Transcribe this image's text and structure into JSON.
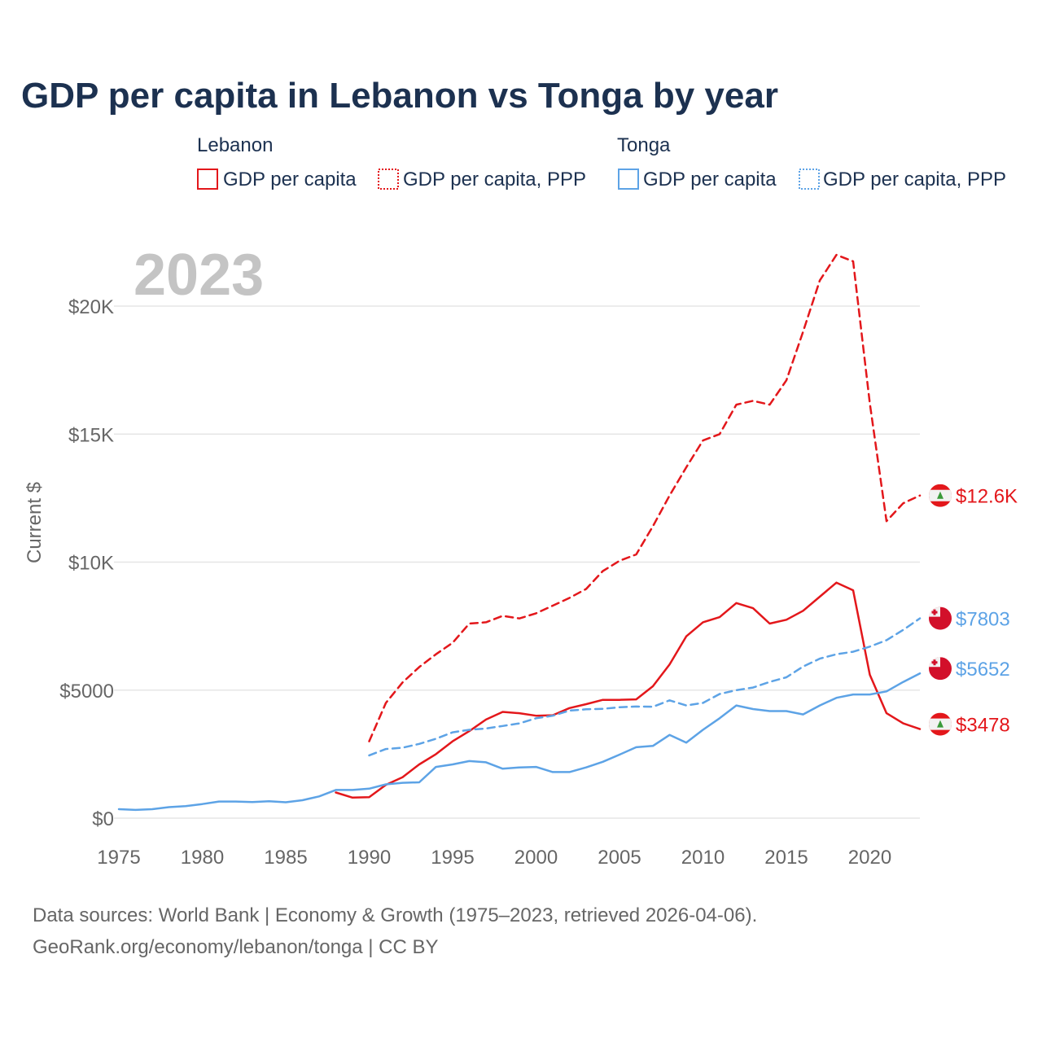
{
  "chart_data": {
    "type": "line",
    "title": "GDP per capita in Lebanon vs Tonga by year",
    "ylabel": "Current $",
    "xlabel": "",
    "xlim": [
      1975,
      2023
    ],
    "ylim": [
      0,
      22000
    ],
    "x_ticks": [
      1975,
      1980,
      1985,
      1990,
      1995,
      2000,
      2005,
      2010,
      2015,
      2020
    ],
    "x_tick_labels": [
      "1975",
      "1980",
      "1985",
      "1990",
      "1995",
      "2000",
      "2005",
      "2010",
      "2015",
      "2020"
    ],
    "y_ticks": [
      0,
      5000,
      10000,
      15000,
      20000
    ],
    "y_tick_labels": [
      "$0",
      "$5000",
      "$10K",
      "$15K",
      "$20K"
    ],
    "current_year": "2023",
    "legend": {
      "groups": [
        {
          "name": "Lebanon",
          "entries": [
            "GDP per capita",
            "GDP per capita, PPP"
          ]
        },
        {
          "name": "Tonga",
          "entries": [
            "GDP per capita",
            "GDP per capita, PPP"
          ]
        }
      ]
    },
    "series": [
      {
        "name": "Lebanon GDP per capita, PPP",
        "country": "Lebanon",
        "style": "dashed",
        "color": "#e3171b",
        "end_label": "$12.6K",
        "x": [
          1990,
          1991,
          1992,
          1993,
          1994,
          1995,
          1996,
          1997,
          1998,
          1999,
          2000,
          2001,
          2002,
          2003,
          2004,
          2005,
          2006,
          2007,
          2008,
          2009,
          2010,
          2011,
          2012,
          2013,
          2014,
          2015,
          2016,
          2017,
          2018,
          2019,
          2020,
          2021,
          2022,
          2023
        ],
        "values": [
          3000,
          4500,
          5300,
          5900,
          6400,
          6850,
          7600,
          7650,
          7900,
          7800,
          8000,
          8300,
          8600,
          8950,
          9650,
          10050,
          10300,
          11400,
          12600,
          13700,
          14750,
          15000,
          16150,
          16300,
          16150,
          17100,
          19000,
          21000,
          22000,
          21750,
          16200,
          11600,
          12300,
          12600
        ]
      },
      {
        "name": "Lebanon GDP per capita",
        "country": "Lebanon",
        "style": "solid",
        "color": "#e3171b",
        "end_label": "$3478",
        "x": [
          1988,
          1989,
          1990,
          1991,
          1992,
          1993,
          1994,
          1995,
          1996,
          1997,
          1998,
          1999,
          2000,
          2001,
          2002,
          2003,
          2004,
          2005,
          2006,
          2007,
          2008,
          2009,
          2010,
          2011,
          2012,
          2013,
          2014,
          2015,
          2016,
          2017,
          2018,
          2019,
          2020,
          2021,
          2022,
          2023
        ],
        "values": [
          1000,
          800,
          820,
          1300,
          1600,
          2100,
          2500,
          3000,
          3400,
          3850,
          4150,
          4100,
          4000,
          4020,
          4300,
          4450,
          4620,
          4620,
          4640,
          5150,
          6000,
          7100,
          7650,
          7850,
          8400,
          8200,
          7600,
          7750,
          8100,
          8650,
          9200,
          8900,
          5600,
          4100,
          3700,
          3478
        ]
      },
      {
        "name": "Tonga GDP per capita, PPP",
        "country": "Tonga",
        "style": "dashed",
        "color": "#5da3e6",
        "end_label": "$7803",
        "x": [
          1990,
          1991,
          1992,
          1993,
          1994,
          1995,
          1996,
          1997,
          1998,
          1999,
          2000,
          2001,
          2002,
          2003,
          2004,
          2005,
          2006,
          2007,
          2008,
          2009,
          2010,
          2011,
          2012,
          2013,
          2014,
          2015,
          2016,
          2017,
          2018,
          2019,
          2020,
          2021,
          2022,
          2023
        ],
        "values": [
          2450,
          2700,
          2750,
          2900,
          3100,
          3350,
          3450,
          3500,
          3600,
          3700,
          3900,
          4000,
          4200,
          4250,
          4270,
          4330,
          4360,
          4350,
          4600,
          4400,
          4500,
          4850,
          5000,
          5100,
          5320,
          5500,
          5920,
          6230,
          6400,
          6500,
          6700,
          6950,
          7350,
          7803
        ]
      },
      {
        "name": "Tonga GDP per capita",
        "country": "Tonga",
        "style": "solid",
        "color": "#5da3e6",
        "end_label": "$5652",
        "x": [
          1975,
          1976,
          1977,
          1978,
          1979,
          1980,
          1981,
          1982,
          1983,
          1984,
          1985,
          1986,
          1987,
          1988,
          1989,
          1990,
          1991,
          1992,
          1993,
          1994,
          1995,
          1996,
          1997,
          1998,
          1999,
          2000,
          2001,
          2002,
          2003,
          2004,
          2005,
          2006,
          2007,
          2008,
          2009,
          2010,
          2011,
          2012,
          2013,
          2014,
          2015,
          2016,
          2017,
          2018,
          2019,
          2020,
          2021,
          2022,
          2023
        ],
        "values": [
          350,
          320,
          350,
          430,
          470,
          550,
          650,
          650,
          630,
          660,
          620,
          700,
          850,
          1100,
          1100,
          1150,
          1320,
          1380,
          1400,
          2000,
          2100,
          2230,
          2180,
          1930,
          1980,
          2000,
          1800,
          1800,
          1980,
          2200,
          2480,
          2770,
          2820,
          3250,
          2950,
          3450,
          3900,
          4400,
          4260,
          4180,
          4180,
          4050,
          4400,
          4700,
          4830,
          4830,
          4950,
          5320,
          5652
        ]
      }
    ],
    "source_lines": [
      "Data sources: World Bank | Economy & Growth (1975–2023, retrieved 2026-04-06).",
      "GeoRank.org/economy/lebanon/tonga | CC BY"
    ]
  },
  "colors": {
    "lebanon": "#e3171b",
    "tonga": "#5da3e6",
    "title": "#1c3150",
    "muted": "#666666",
    "year": "#c4c4c4",
    "grid": "#e6e6e6"
  },
  "icons": {
    "lebanon_flag": "lebanon-flag-icon",
    "tonga_flag": "tonga-flag-icon"
  }
}
